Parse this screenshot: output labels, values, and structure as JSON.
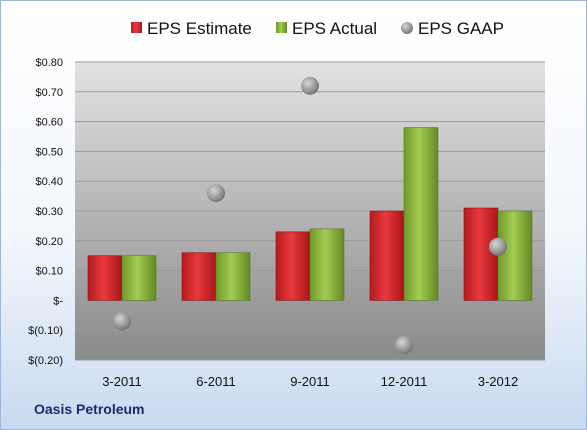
{
  "chart_data": {
    "type": "bar",
    "categories": [
      "3-2011",
      "6-2011",
      "9-2011",
      "12-2011",
      "3-2012"
    ],
    "series": [
      {
        "name": "EPS Estimate",
        "kind": "bar",
        "values": [
          0.15,
          0.16,
          0.23,
          0.3,
          0.31
        ]
      },
      {
        "name": "EPS Actual",
        "kind": "bar",
        "values": [
          0.15,
          0.16,
          0.24,
          0.58,
          0.3
        ]
      },
      {
        "name": "EPS GAAP",
        "kind": "scatter",
        "values": [
          -0.07,
          0.36,
          0.72,
          -0.15,
          0.18
        ]
      }
    ],
    "ylim": [
      -0.2,
      0.8
    ],
    "yticks": [
      0.8,
      0.7,
      0.6,
      0.5,
      0.4,
      0.3,
      0.2,
      0.1,
      0.0,
      -0.1,
      -0.2
    ],
    "ytick_labels": [
      "$0.80",
      "$0.70",
      "$0.60",
      "$0.50",
      "$0.40",
      "$0.30",
      "$0.20",
      "$0.10",
      "$-",
      "$(0.10)",
      "$(0.20)"
    ],
    "grid": true,
    "legend_position": "top",
    "colors": {
      "estimate": "#d9262b",
      "actual": "#8cba3c",
      "gaap": "#a9a9a9",
      "plot_top": "#e2e2e2",
      "plot_bottom": "#8a8a8a"
    }
  },
  "footer": {
    "company": "Oasis Petroleum"
  }
}
